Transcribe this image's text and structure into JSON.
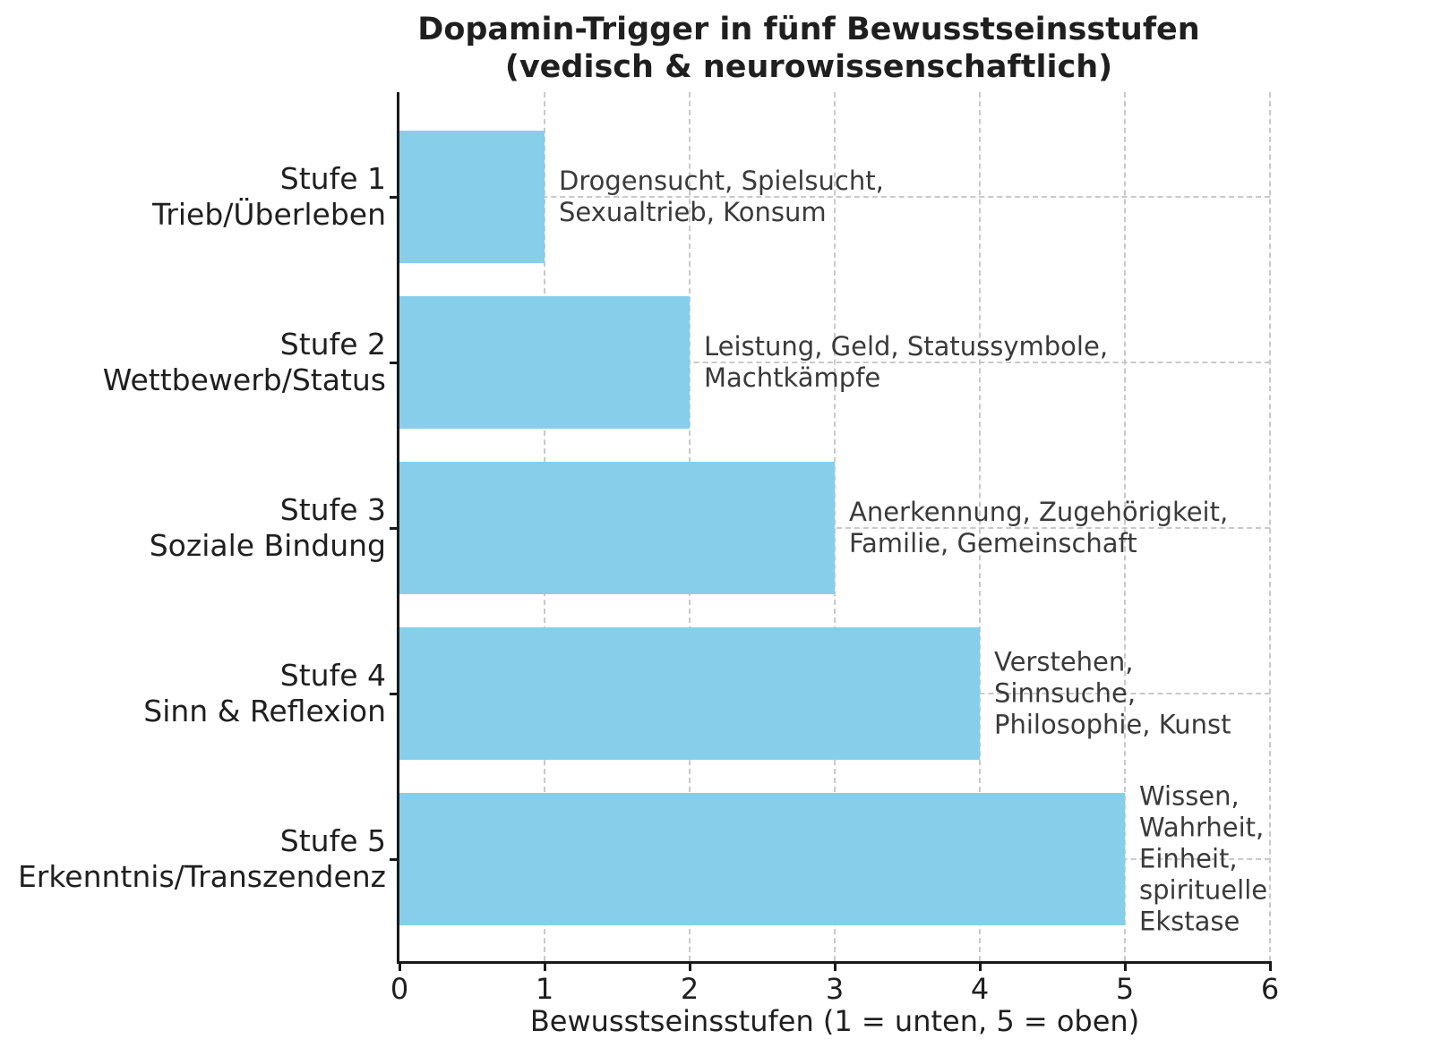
{
  "chart_data": {
    "type": "bar",
    "orientation": "horizontal",
    "title": "Dopamin-Trigger in fünf Bewusstseinsstufen\n(vedisch & neurowissenschaftlich)",
    "xlabel": "Bewusstseinsstufen (1 = unten, 5 = oben)",
    "categories": [
      "Stufe 1\nTrieb/Überleben",
      "Stufe 2\nWettbewerb/Status",
      "Stufe 3\nSoziale Bindung",
      "Stufe 4\nSinn & Reflexion",
      "Stufe 5\nErkenntnis/Transzendenz"
    ],
    "values": [
      1,
      2,
      3,
      4,
      5
    ],
    "annotations": [
      "Drogensucht, Spielsucht,\nSexualtrieb, Konsum",
      "Leistung, Geld, Statussymbole,\nMachtkämpfe",
      "Anerkennung, Zugehörigkeit,\nFamilie, Gemeinschaft",
      "Verstehen, Sinnsuche,\nPhilosophie, Kunst",
      "Wissen, Wahrheit, Einheit,\nspirituelle Ekstase"
    ],
    "xlim": [
      0,
      6
    ],
    "xticks": [
      0,
      1,
      2,
      3,
      4,
      5,
      6
    ],
    "ylabel": "",
    "bar_color": "#87CEEB",
    "grid": true,
    "grid_style": "dashed",
    "grid_color": "#c9c9c9",
    "grid_below_bars": true,
    "legend": "none",
    "spine_color": "#1a1a1a",
    "text_color": "#1f1f1f",
    "annotation_color": "#3a3a3a"
  }
}
